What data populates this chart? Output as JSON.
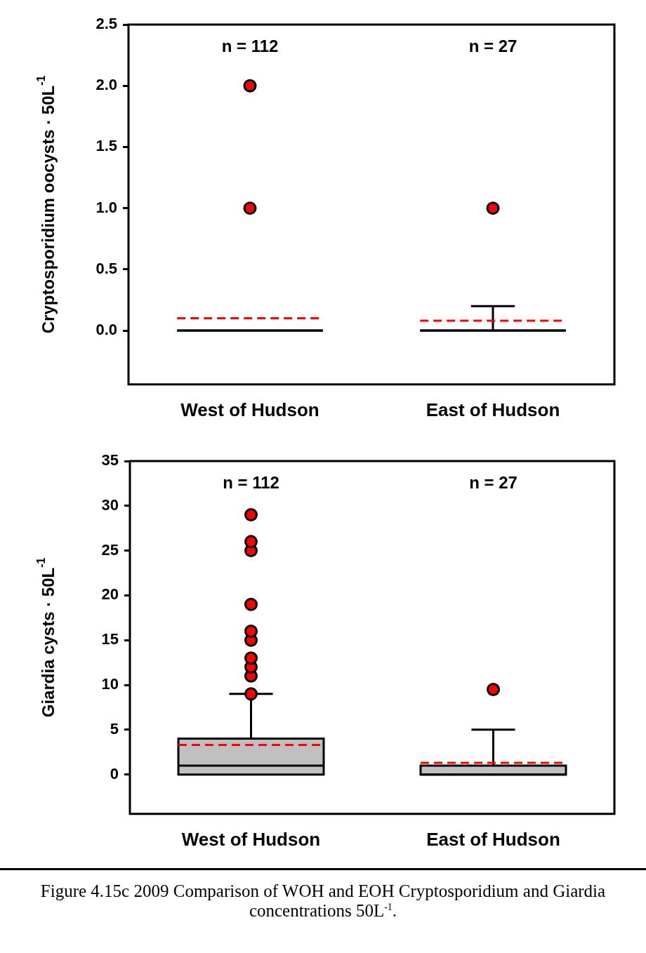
{
  "chart_data": [
    {
      "type": "box",
      "ylabel": "Cryptosporidium oocysts · 50L$^{-1}$",
      "categories": [
        "West of Hudson",
        "East of Hudson"
      ],
      "ylim": [
        -0.44,
        2.5
      ],
      "yticks": [
        {
          "value": 0,
          "label": "0.0"
        },
        0.5,
        {
          "value": 1,
          "label": "1.0"
        },
        1.5,
        {
          "value": 2,
          "label": "2.0"
        },
        2.5
      ],
      "series": [
        {
          "boxes": [
            {
              "low": 0,
              "q1": 0,
              "median": 0,
              "q3": 0,
              "high": 0,
              "mean": 0.1,
              "outliers": [
                1,
                2
              ]
            },
            {
              "low": 0,
              "q1": 0,
              "median": 0,
              "q3": 0,
              "high": 0.2,
              "mean": 0.08,
              "outliers": [
                1
              ]
            }
          ]
        }
      ],
      "annotations": [
        "n = 112",
        "n = 27"
      ]
    },
    {
      "type": "box",
      "ylabel": "Giardia cysts · 50L$^{-1}$",
      "categories": [
        "West of Hudson",
        "East of Hudson"
      ],
      "ylim": [
        -4.4,
        35
      ],
      "yticks": [
        0,
        5,
        10,
        15,
        20,
        25,
        30,
        35
      ],
      "series": [
        {
          "color": "#c0c0c0",
          "boxes": [
            {
              "low": 0,
              "q1": 0,
              "median": 1,
              "q3": 4,
              "high": 9,
              "mean": 3.3,
              "outliers": [
                9,
                11,
                12,
                13,
                15,
                16,
                19,
                25,
                26,
                29
              ]
            },
            {
              "low": 0,
              "q1": 0,
              "median": 0,
              "q3": 1,
              "high": 5,
              "mean": 1.3,
              "outliers": [
                9.5
              ]
            }
          ]
        }
      ],
      "annotations": [
        "n = 112",
        "n = 27",
        "Figure 4.15c  2009 Comparison of WOH and EOH Cryptosporidium and Giardia concentrations 50L$^{-1}$."
      ]
    }
  ]
}
